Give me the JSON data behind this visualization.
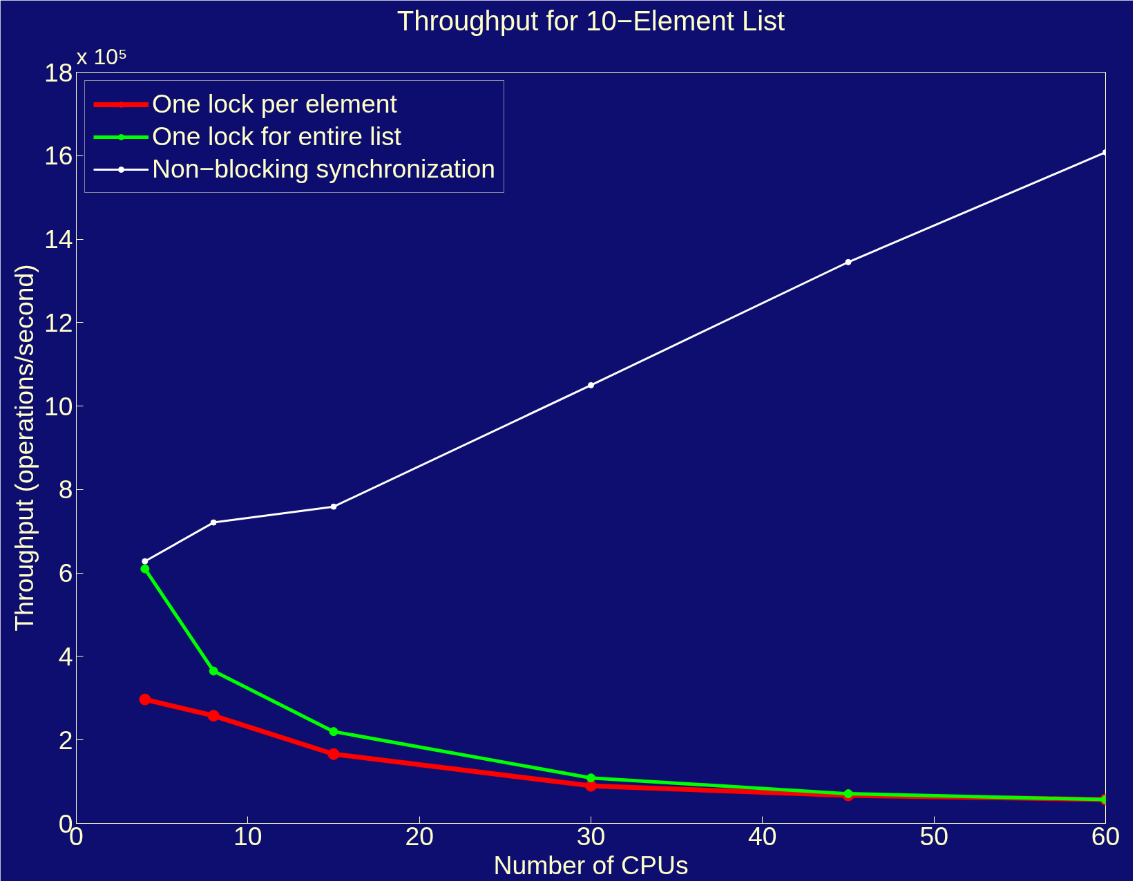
{
  "chart_data": {
    "type": "line",
    "title": "Throughput for 10−Element List",
    "xlabel": "Number of CPUs",
    "ylabel": "Throughput (operations/second)",
    "annotations": [
      "x 10⁵"
    ],
    "x": [
      4,
      8,
      15,
      30,
      45,
      60
    ],
    "series": [
      {
        "name": "One lock per element",
        "color": "#ff0000",
        "values": [
          2.97,
          2.58,
          1.66,
          0.9,
          0.67,
          0.57
        ]
      },
      {
        "name": "One lock for entire list",
        "color": "#00ff00",
        "values": [
          6.1,
          3.65,
          2.2,
          1.09,
          0.71,
          0.57
        ]
      },
      {
        "name": "Non−blocking synchronization",
        "color": "#ffffff",
        "values": [
          6.28,
          7.21,
          7.59,
          10.5,
          13.45,
          16.08
        ]
      }
    ],
    "xlim": [
      0,
      60
    ],
    "xticks": [
      0,
      10,
      20,
      30,
      40,
      50,
      60
    ],
    "ylim": [
      0,
      18
    ],
    "yticks": [
      0,
      2,
      4,
      6,
      8,
      10,
      12,
      14,
      16,
      18
    ],
    "grid": false,
    "legend": "top left",
    "marker": "circle",
    "line_style": "solid"
  }
}
